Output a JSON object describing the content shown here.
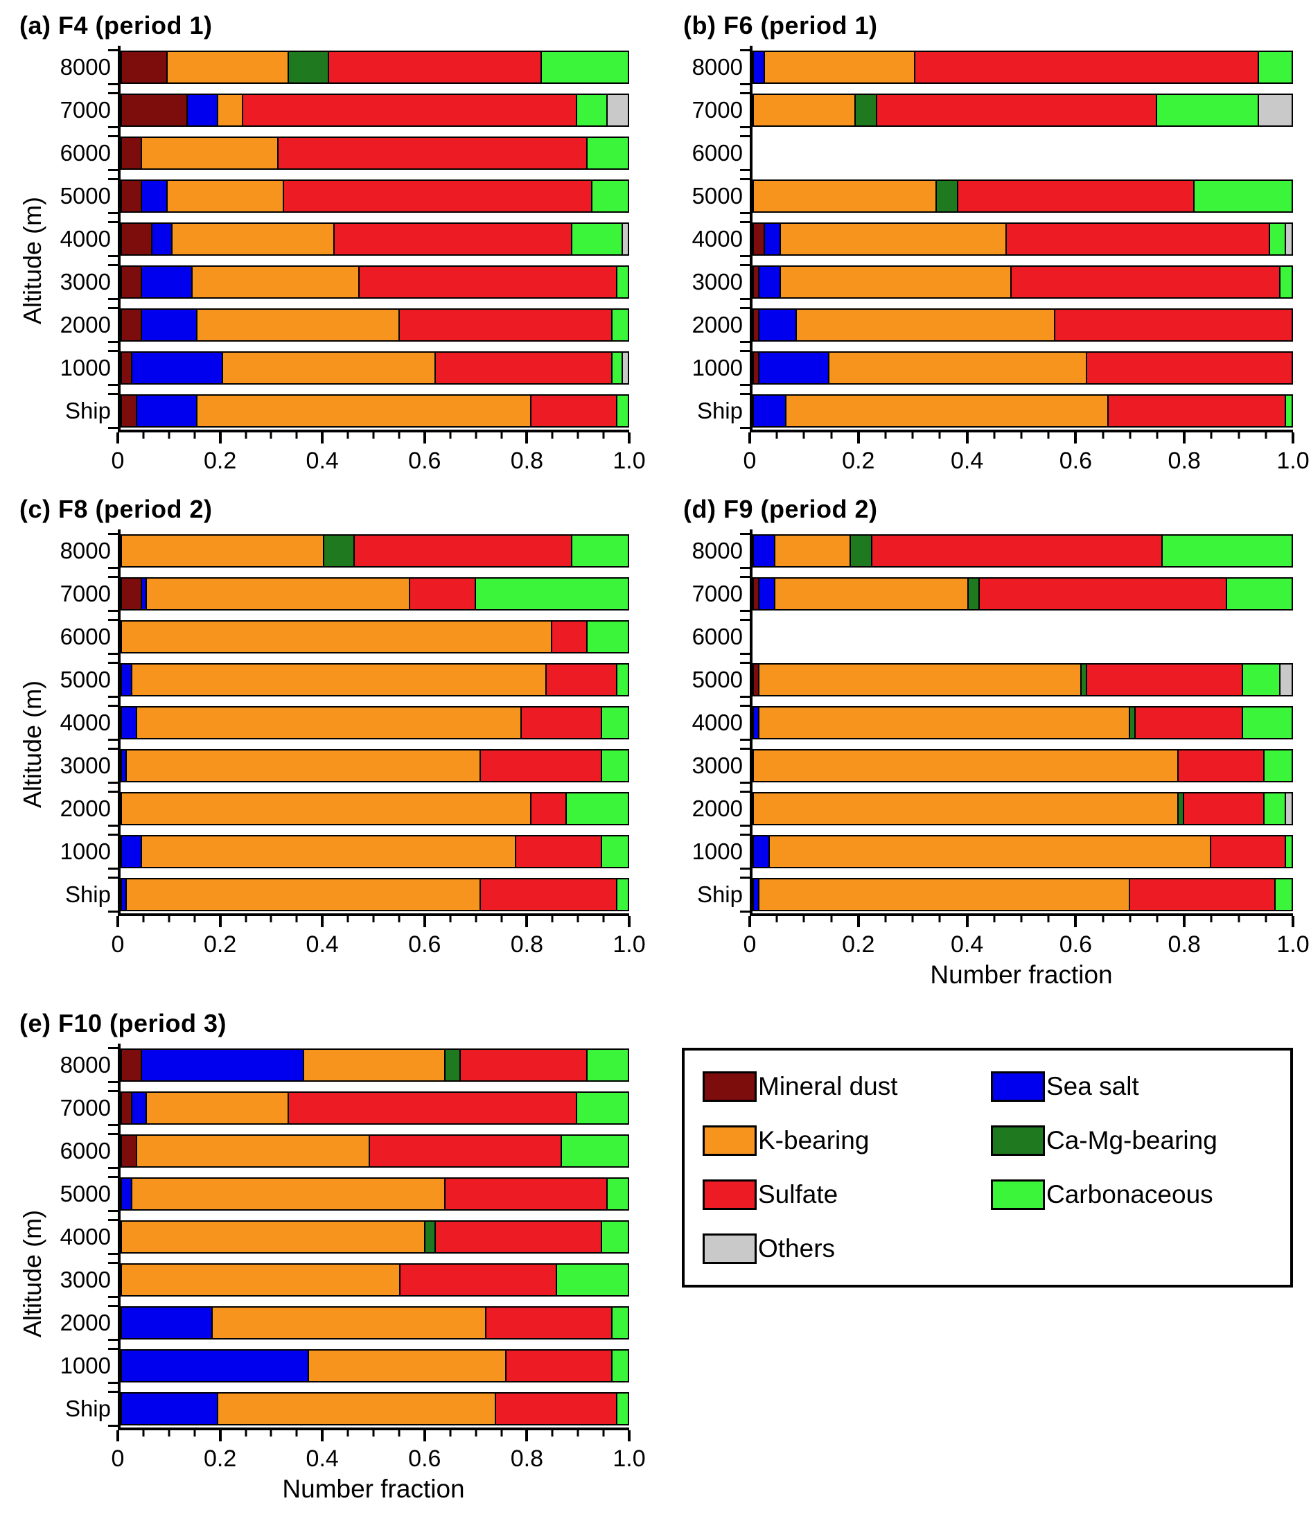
{
  "colors": {
    "mineral_dust": "#7d0d0d",
    "sea_salt": "#0000ee",
    "k_bearing": "#f7941d",
    "ca_mg_bearing": "#1f7a1f",
    "sulfate": "#ed1c24",
    "carbonaceous": "#3bf53b",
    "others": "#c9c9c9"
  },
  "legend": {
    "items": [
      {
        "key": "mineral_dust",
        "label": "Mineral dust"
      },
      {
        "key": "sea_salt",
        "label": "Sea salt"
      },
      {
        "key": "k_bearing",
        "label": "K-bearing"
      },
      {
        "key": "ca_mg_bearing",
        "label": "Ca-Mg-bearing"
      },
      {
        "key": "sulfate",
        "label": "Sulfate"
      },
      {
        "key": "carbonaceous",
        "label": "Carbonaceous"
      },
      {
        "key": "others",
        "label": "Others"
      }
    ]
  },
  "chart_data": [
    {
      "id": "a",
      "type": "bar",
      "stacked": true,
      "orientation": "horizontal",
      "title": "(a) F4 (period 1)",
      "ylabel": "Altitude (m)",
      "xlabel": "",
      "xlim": [
        0,
        1.0
      ],
      "xticks": [
        "0",
        "0.2",
        "0.4",
        "0.6",
        "0.8",
        "1.0"
      ],
      "categories": [
        "8000",
        "7000",
        "6000",
        "5000",
        "4000",
        "3000",
        "2000",
        "1000",
        "Ship"
      ],
      "series": [
        {
          "key": "mineral_dust",
          "name": "Mineral dust",
          "values": [
            0.09,
            0.13,
            0.04,
            0.04,
            0.06,
            0.04,
            0.04,
            0.02,
            0.03
          ]
        },
        {
          "key": "sea_salt",
          "name": "Sea salt",
          "values": [
            0,
            0.06,
            0,
            0.05,
            0.04,
            0.1,
            0.11,
            0.18,
            0.12
          ]
        },
        {
          "key": "k_bearing",
          "name": "K-bearing",
          "values": [
            0.24,
            0.05,
            0.27,
            0.23,
            0.32,
            0.33,
            0.4,
            0.42,
            0.66
          ]
        },
        {
          "key": "ca_mg_bearing",
          "name": "Ca-Mg-bearing",
          "values": [
            0.08,
            0,
            0,
            0,
            0,
            0,
            0,
            0,
            0
          ]
        },
        {
          "key": "sulfate",
          "name": "Sulfate",
          "values": [
            0.42,
            0.66,
            0.61,
            0.61,
            0.47,
            0.51,
            0.42,
            0.35,
            0.17
          ]
        },
        {
          "key": "carbonaceous",
          "name": "Carbonaceous",
          "values": [
            0.17,
            0.06,
            0.08,
            0.07,
            0.1,
            0.02,
            0.03,
            0.02,
            0.02
          ]
        },
        {
          "key": "others",
          "name": "Others",
          "values": [
            0,
            0.04,
            0,
            0,
            0.01,
            0,
            0,
            0.01,
            0
          ]
        }
      ]
    },
    {
      "id": "b",
      "type": "bar",
      "stacked": true,
      "orientation": "horizontal",
      "title": "(b) F6 (period 1)",
      "ylabel": "",
      "xlabel": "",
      "xlim": [
        0,
        1.0
      ],
      "xticks": [
        "0",
        "0.2",
        "0.4",
        "0.6",
        "0.8",
        "1.0"
      ],
      "categories": [
        "8000",
        "7000",
        "6000",
        "5000",
        "4000",
        "3000",
        "2000",
        "1000",
        "Ship"
      ],
      "series": [
        {
          "key": "mineral_dust",
          "name": "Mineral dust",
          "values": [
            0,
            0,
            0,
            0,
            0.02,
            0.01,
            0.01,
            0.01,
            0
          ]
        },
        {
          "key": "sea_salt",
          "name": "Sea salt",
          "values": [
            0.02,
            0,
            0,
            0,
            0.03,
            0.04,
            0.07,
            0.13,
            0.06
          ]
        },
        {
          "key": "k_bearing",
          "name": "K-bearing",
          "values": [
            0.28,
            0.19,
            0,
            0.34,
            0.42,
            0.43,
            0.48,
            0.48,
            0.6
          ]
        },
        {
          "key": "ca_mg_bearing",
          "name": "Ca-Mg-bearing",
          "values": [
            0,
            0.04,
            0,
            0.04,
            0,
            0,
            0,
            0,
            0
          ]
        },
        {
          "key": "sulfate",
          "name": "Sulfate",
          "values": [
            0.64,
            0.52,
            0,
            0.44,
            0.49,
            0.5,
            0.44,
            0.38,
            0.33
          ]
        },
        {
          "key": "carbonaceous",
          "name": "Carbonaceous",
          "values": [
            0.06,
            0.19,
            0,
            0.18,
            0.03,
            0.02,
            0,
            0,
            0.01
          ]
        },
        {
          "key": "others",
          "name": "Others",
          "values": [
            0,
            0.06,
            0,
            0,
            0.01,
            0,
            0,
            0,
            0
          ]
        }
      ]
    },
    {
      "id": "c",
      "type": "bar",
      "stacked": true,
      "orientation": "horizontal",
      "title": "(c) F8 (period 2)",
      "ylabel": "Altitude (m)",
      "xlabel": "",
      "xlim": [
        0,
        1.0
      ],
      "xticks": [
        "0",
        "0.2",
        "0.4",
        "0.6",
        "0.8",
        "1.0"
      ],
      "categories": [
        "8000",
        "7000",
        "6000",
        "5000",
        "4000",
        "3000",
        "2000",
        "1000",
        "Ship"
      ],
      "series": [
        {
          "key": "mineral_dust",
          "name": "Mineral dust",
          "values": [
            0,
            0.04,
            0,
            0,
            0,
            0,
            0,
            0,
            0
          ]
        },
        {
          "key": "sea_salt",
          "name": "Sea salt",
          "values": [
            0,
            0.01,
            0,
            0.02,
            0.03,
            0.01,
            0,
            0.04,
            0.01
          ]
        },
        {
          "key": "k_bearing",
          "name": "K-bearing",
          "values": [
            0.4,
            0.52,
            0.85,
            0.82,
            0.76,
            0.7,
            0.81,
            0.74,
            0.7
          ]
        },
        {
          "key": "ca_mg_bearing",
          "name": "Ca-Mg-bearing",
          "values": [
            0.06,
            0,
            0,
            0,
            0,
            0,
            0,
            0,
            0
          ]
        },
        {
          "key": "sulfate",
          "name": "Sulfate",
          "values": [
            0.43,
            0.13,
            0.07,
            0.14,
            0.16,
            0.24,
            0.07,
            0.17,
            0.27
          ]
        },
        {
          "key": "carbonaceous",
          "name": "Carbonaceous",
          "values": [
            0.11,
            0.3,
            0.08,
            0.02,
            0.05,
            0.05,
            0.12,
            0.05,
            0.02
          ]
        },
        {
          "key": "others",
          "name": "Others",
          "values": [
            0,
            0,
            0,
            0,
            0,
            0,
            0,
            0,
            0
          ]
        }
      ]
    },
    {
      "id": "d",
      "type": "bar",
      "stacked": true,
      "orientation": "horizontal",
      "title": "(d) F9 (period 2)",
      "ylabel": "",
      "xlabel": "Number fraction",
      "xlim": [
        0,
        1.0
      ],
      "xticks": [
        "0",
        "0.2",
        "0.4",
        "0.6",
        "0.8",
        "1.0"
      ],
      "categories": [
        "8000",
        "7000",
        "6000",
        "5000",
        "4000",
        "3000",
        "2000",
        "1000",
        "Ship"
      ],
      "series": [
        {
          "key": "mineral_dust",
          "name": "Mineral dust",
          "values": [
            0,
            0.01,
            0,
            0.01,
            0,
            0,
            0,
            0,
            0
          ]
        },
        {
          "key": "sea_salt",
          "name": "Sea salt",
          "values": [
            0.04,
            0.03,
            0,
            0,
            0.01,
            0,
            0,
            0.03,
            0.01
          ]
        },
        {
          "key": "k_bearing",
          "name": "K-bearing",
          "values": [
            0.14,
            0.36,
            0,
            0.6,
            0.69,
            0.79,
            0.79,
            0.82,
            0.69
          ]
        },
        {
          "key": "ca_mg_bearing",
          "name": "Ca-Mg-bearing",
          "values": [
            0.04,
            0.02,
            0,
            0.01,
            0.01,
            0,
            0.01,
            0,
            0
          ]
        },
        {
          "key": "sulfate",
          "name": "Sulfate",
          "values": [
            0.54,
            0.46,
            0,
            0.29,
            0.2,
            0.16,
            0.15,
            0.14,
            0.27
          ]
        },
        {
          "key": "carbonaceous",
          "name": "Carbonaceous",
          "values": [
            0.24,
            0.12,
            0,
            0.07,
            0.09,
            0.05,
            0.04,
            0.01,
            0.03
          ]
        },
        {
          "key": "others",
          "name": "Others",
          "values": [
            0,
            0,
            0,
            0.02,
            0,
            0,
            0.01,
            0,
            0
          ]
        }
      ]
    },
    {
      "id": "e",
      "type": "bar",
      "stacked": true,
      "orientation": "horizontal",
      "title": "(e) F10 (period 3)",
      "ylabel": "Altitude (m)",
      "xlabel": "Number fraction",
      "xlim": [
        0,
        1.0
      ],
      "xticks": [
        "0",
        "0.2",
        "0.4",
        "0.6",
        "0.8",
        "1.0"
      ],
      "categories": [
        "8000",
        "7000",
        "6000",
        "5000",
        "4000",
        "3000",
        "2000",
        "1000",
        "Ship"
      ],
      "series": [
        {
          "key": "mineral_dust",
          "name": "Mineral dust",
          "values": [
            0.04,
            0.02,
            0.03,
            0,
            0,
            0,
            0,
            0,
            0
          ]
        },
        {
          "key": "sea_salt",
          "name": "Sea salt",
          "values": [
            0.32,
            0.03,
            0,
            0.02,
            0,
            0,
            0.18,
            0.37,
            0.19
          ]
        },
        {
          "key": "k_bearing",
          "name": "K-bearing",
          "values": [
            0.28,
            0.28,
            0.46,
            0.62,
            0.6,
            0.55,
            0.54,
            0.39,
            0.55
          ]
        },
        {
          "key": "ca_mg_bearing",
          "name": "Ca-Mg-bearing",
          "values": [
            0.03,
            0,
            0,
            0,
            0.02,
            0,
            0,
            0,
            0
          ]
        },
        {
          "key": "sulfate",
          "name": "Sulfate",
          "values": [
            0.25,
            0.57,
            0.38,
            0.32,
            0.33,
            0.31,
            0.25,
            0.21,
            0.24
          ]
        },
        {
          "key": "carbonaceous",
          "name": "Carbonaceous",
          "values": [
            0.08,
            0.1,
            0.13,
            0.04,
            0.05,
            0.14,
            0.03,
            0.03,
            0.02
          ]
        },
        {
          "key": "others",
          "name": "Others",
          "values": [
            0,
            0,
            0,
            0,
            0,
            0,
            0,
            0,
            0
          ]
        }
      ]
    }
  ]
}
